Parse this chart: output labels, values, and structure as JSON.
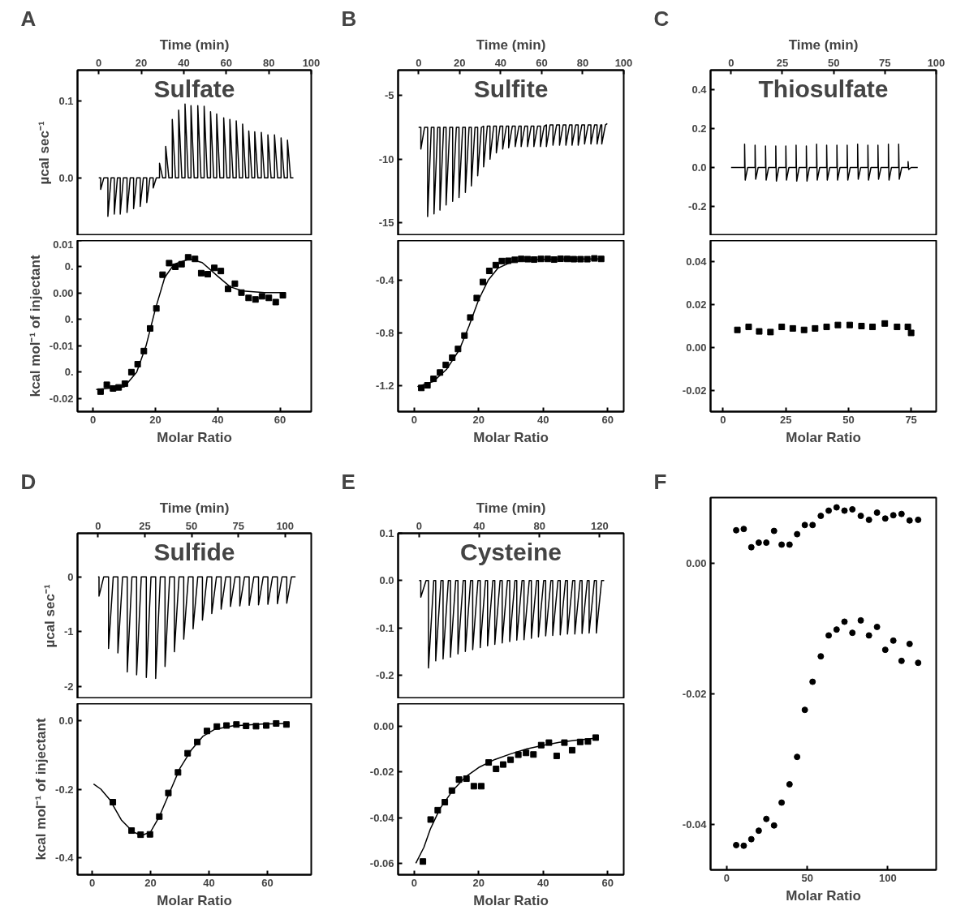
{
  "chart_data": [
    {
      "type": "line",
      "title": "A",
      "annotations": [
        "Sulfate"
      ],
      "xlabel": "Time (min)",
      "xlim": [
        -10,
        100
      ],
      "xticks": [
        0,
        20,
        40,
        60,
        80,
        100
      ],
      "ylabel": "µcal sec⁻¹",
      "ylim": [
        -0.075,
        0.14
      ],
      "yticks": [
        {
          "value": 0,
          "label": "0.0"
        },
        0.1
      ],
      "series": [
        {
          "color": "#000000",
          "x": [
            0,
            0.9,
            0.9,
            2.4,
            4.3,
            4.3,
            5.8,
            7.3,
            7.3,
            8.8,
            10.1,
            10.1,
            11.6,
            13.3,
            13.3,
            14.8,
            16.4,
            16.4,
            17.9,
            19.5,
            19.5,
            21.0,
            22.6,
            22.6,
            24.1,
            25.6,
            25.6,
            27.1,
            28.6,
            28.6,
            30.1,
            31.5,
            31.5,
            33.0,
            34.6,
            34.6,
            36.1,
            37.6,
            37.6,
            39.1,
            40.6,
            40.6,
            42.1,
            43.4,
            43.4,
            44.9,
            46.6,
            46.6,
            48.1,
            49.6,
            49.6,
            51.1,
            52.6,
            52.6,
            54.1,
            55.5,
            55.5,
            57.0,
            58.8,
            58.8,
            60.3,
            61.7,
            61.7,
            63.2,
            64.7,
            64.7,
            66.2,
            67.7,
            67.7,
            69.2,
            70.6,
            70.6,
            72.1,
            73.4,
            73.4,
            74.9,
            76.5,
            76.5,
            78.0,
            79.6,
            79.6,
            81.1,
            82.7,
            82.7,
            84.2,
            85.8,
            85.8,
            87.3,
            88.8,
            88.8,
            90.3,
            91.6
          ],
          "values": [
            0,
            0,
            -0.015,
            0,
            0,
            -0.05,
            0,
            0,
            -0.047,
            0,
            0,
            -0.047,
            0,
            0,
            -0.045,
            0,
            0,
            -0.04,
            0,
            0,
            -0.037,
            0,
            0,
            -0.032,
            0,
            0,
            -0.013,
            0,
            0,
            0.019,
            0,
            0,
            0.041,
            0,
            0,
            0.076,
            0,
            0,
            0.088,
            0,
            0,
            0.096,
            0,
            0,
            0.094,
            0,
            0,
            0.094,
            0,
            0,
            0.093,
            0,
            0,
            0.086,
            0,
            0,
            0.083,
            0,
            0,
            0.078,
            0,
            0,
            0.076,
            0,
            0,
            0.074,
            0,
            0,
            0.07,
            0,
            0,
            0.061,
            0,
            0,
            0.06,
            0,
            0,
            0.059,
            0,
            0,
            0.056,
            0,
            0,
            0.056,
            0,
            0,
            0.052,
            0,
            0,
            0.049,
            0,
            0
          ]
        }
      ]
    },
    {
      "type": "scatter",
      "xlabel": "Molar Ratio",
      "xlim": [
        -5,
        70
      ],
      "xticks": [
        0,
        20,
        40,
        60
      ],
      "ylabel": "kcal mol⁻¹ of injectant",
      "ylim": [
        -0.0225,
        0.01
      ],
      "yticks": [
        0.01,
        {
          "value": 0.005,
          "label": "0."
        },
        {
          "value": 0,
          "label": "0.00"
        },
        {
          "value": -0.005,
          "label": "0."
        },
        -0.01,
        {
          "value": -0.015,
          "label": "0."
        },
        -0.02
      ],
      "series": [
        {
          "type": "scatter",
          "marker": "square",
          "color": "#000000",
          "x": [
            2.4,
            4.4,
            6.4,
            8.2,
            10.2,
            12.3,
            14.3,
            16.3,
            18.3,
            20.3,
            22.3,
            24.4,
            26.4,
            28.4,
            30.5,
            32.7,
            34.7,
            36.8,
            38.9,
            41,
            43.3,
            45.5,
            47.6,
            49.9,
            52.1,
            54.2,
            56.4,
            58.6,
            60.9
          ],
          "values": [
            -0.0187,
            -0.0174,
            -0.0181,
            -0.0179,
            -0.0172,
            -0.015,
            -0.0135,
            -0.011,
            -0.0067,
            -0.0029,
            0.0035,
            0.0057,
            0.005,
            0.0055,
            0.0068,
            0.0065,
            0.0038,
            0.0036,
            0.0048,
            0.0042,
            0.0008,
            0.0018,
            0.0001,
            -0.0009,
            -0.0012,
            -0.0006,
            -0.0009,
            -0.0017,
            -0.0004
          ]
        },
        {
          "type": "line",
          "color": "#000000",
          "x": [
            1,
            10,
            14,
            17,
            20,
            23,
            26,
            31,
            35,
            40,
            44,
            48,
            55,
            61
          ],
          "values": [
            -0.0183,
            -0.0178,
            -0.015,
            -0.01,
            -0.003,
            0.003,
            0.0055,
            0.0065,
            0.0058,
            0.0032,
            0.0012,
            0.0004,
            0.0001,
            0.0001
          ]
        }
      ]
    },
    {
      "type": "line",
      "title": "B",
      "annotations": [
        "Sulfite"
      ],
      "xlabel": "Time (min)",
      "xlim": [
        -10,
        100
      ],
      "xticks": [
        0,
        20,
        40,
        60,
        80,
        100
      ],
      "ylim": [
        -16,
        -3
      ],
      "yticks": [
        -5,
        -10,
        -15
      ],
      "series": [
        {
          "color": "#000000",
          "x": [
            0,
            1.1,
            1.1,
            2.9,
            4.4,
            4.4,
            6.2,
            7.5,
            7.5,
            9.3,
            10.4,
            10.4,
            12.2,
            13.4,
            13.4,
            15.2,
            16.6,
            16.6,
            18.4,
            19.7,
            19.7,
            21.5,
            22.8,
            22.8,
            24.6,
            25.7,
            25.7,
            27.5,
            28.8,
            28.8,
            30.6,
            31.7,
            31.7,
            33.5,
            34.8,
            34.8,
            36.6,
            37.9,
            37.9,
            39.7,
            41.0,
            41.0,
            42.8,
            43.9,
            43.9,
            45.7,
            47.1,
            47.1,
            48.9,
            50.0,
            50.0,
            51.8,
            53.1,
            53.1,
            54.9,
            56.2,
            56.2,
            58.0,
            59.4,
            59.4,
            61.2,
            62.3,
            62.3,
            64.1,
            65.5,
            65.5,
            67.3,
            68.7,
            68.7,
            70.5,
            71.8,
            71.8,
            73.6,
            74.8,
            74.8,
            76.6,
            77.8,
            77.8,
            79.6,
            80.9,
            80.9,
            82.7,
            84.0,
            84.0,
            85.8,
            87.0,
            87.0,
            88.8,
            89.3,
            89.3,
            91.1,
            92
          ],
          "values": [
            -7.5,
            -7.5,
            -9.2,
            -7.5,
            -7.5,
            -14.5,
            -7.5,
            -7.5,
            -14.3,
            -7.5,
            -7.5,
            -14.0,
            -7.5,
            -7.5,
            -13.6,
            -7.5,
            -7.5,
            -13.3,
            -7.5,
            -7.5,
            -13.0,
            -7.5,
            -7.5,
            -12.6,
            -7.5,
            -7.5,
            -12.1,
            -7.5,
            -7.5,
            -11.3,
            -7.5,
            -7.4,
            -10.6,
            -7.4,
            -7.4,
            -10.0,
            -7.4,
            -7.4,
            -9.5,
            -7.4,
            -7.4,
            -9.2,
            -7.4,
            -7.4,
            -9.1,
            -7.4,
            -7.4,
            -9.0,
            -7.4,
            -7.4,
            -9.0,
            -7.4,
            -7.4,
            -9.0,
            -7.4,
            -7.4,
            -9.0,
            -7.4,
            -7.4,
            -9.0,
            -7.4,
            -7.3,
            -9.0,
            -7.3,
            -7.3,
            -8.9,
            -7.3,
            -7.3,
            -8.9,
            -7.3,
            -7.3,
            -8.9,
            -7.3,
            -7.3,
            -8.9,
            -7.3,
            -7.3,
            -8.9,
            -7.3,
            -7.3,
            -8.8,
            -7.3,
            -7.3,
            -8.8,
            -7.3,
            -7.3,
            -8.8,
            -7.3,
            -7.3,
            -8.8,
            -7.3,
            -7.2
          ]
        }
      ]
    },
    {
      "type": "scatter",
      "xlabel": "Molar Ratio",
      "xlim": [
        -5,
        65
      ],
      "xticks": [
        0,
        20,
        40,
        60
      ],
      "ylim": [
        -1.4,
        -0.1
      ],
      "yticks": [
        -0.4,
        -0.8,
        -1.2
      ],
      "series": [
        {
          "type": "scatter",
          "marker": "square",
          "color": "#000000",
          "x": [
            2.2,
            4.1,
            6.0,
            8.0,
            9.8,
            11.8,
            13.6,
            15.6,
            17.4,
            19.4,
            21.3,
            23.3,
            25.3,
            27.2,
            29.2,
            31.2,
            33.2,
            35.2,
            37.2,
            39.3,
            41.4,
            43.4,
            45.4,
            47.5,
            49.5,
            51.6,
            53.7,
            55.9,
            58.0
          ],
          "values": [
            -1.22,
            -1.2,
            -1.151,
            -1.103,
            -1.045,
            -0.99,
            -0.924,
            -0.822,
            -0.685,
            -0.537,
            -0.415,
            -0.331,
            -0.287,
            -0.256,
            -0.254,
            -0.247,
            -0.24,
            -0.242,
            -0.245,
            -0.24,
            -0.24,
            -0.245,
            -0.239,
            -0.24,
            -0.242,
            -0.242,
            -0.242,
            -0.236,
            -0.24
          ]
        },
        {
          "type": "line",
          "color": "#000000",
          "x": [
            1,
            6,
            10,
            14,
            17,
            20,
            23,
            26,
            30,
            35,
            45,
            58
          ],
          "values": [
            -1.21,
            -1.17,
            -1.08,
            -0.93,
            -0.75,
            -0.55,
            -0.4,
            -0.31,
            -0.265,
            -0.247,
            -0.242,
            -0.24
          ]
        }
      ]
    },
    {
      "type": "line",
      "title": "C",
      "annotations": [
        "Thiosulfate"
      ],
      "xlabel": "Time (min)",
      "xlim": [
        -10,
        100
      ],
      "xticks": [
        0,
        25,
        50,
        75,
        100
      ],
      "ylim": [
        -0.35,
        0.5
      ],
      "yticks": [
        0.4,
        0.2,
        {
          "value": 0,
          "label": "0.0"
        },
        -0.2
      ],
      "series": [
        {
          "color": "#000000",
          "x": [
            0,
            6.6,
            6.6,
            6.9,
            8.1,
            11.7,
            11.7,
            12.0,
            13.2,
            16.8,
            16.8,
            17.1,
            18.3,
            21.8,
            21.8,
            22.1,
            23.3,
            26.7,
            26.7,
            27.0,
            28.2,
            31.7,
            31.7,
            32.0,
            33.2,
            36.7,
            36.7,
            37.0,
            38.2,
            41.7,
            41.7,
            42.0,
            43.2,
            46.6,
            46.6,
            46.9,
            48.1,
            51.6,
            51.6,
            51.9,
            53.1,
            56.6,
            56.6,
            56.9,
            58.1,
            61.7,
            61.7,
            62.0,
            63.2,
            66.7,
            66.7,
            67.0,
            68.2,
            71.6,
            71.6,
            71.9,
            73.1,
            76.7,
            76.7,
            77.0,
            78.2,
            81.7,
            81.7,
            82.0,
            83.2,
            86.3,
            86.3,
            86.6,
            87.8,
            91
          ],
          "values": [
            0,
            0,
            0.12,
            -0.065,
            0,
            0,
            0.115,
            -0.06,
            0,
            0,
            0.11,
            -0.065,
            0,
            0,
            0.11,
            -0.07,
            0,
            0,
            0.11,
            -0.065,
            0,
            0,
            0.115,
            -0.07,
            0,
            0,
            0.11,
            -0.07,
            0,
            0,
            0.12,
            -0.065,
            0,
            0,
            0.115,
            -0.065,
            0,
            0,
            0.115,
            -0.065,
            0,
            0,
            0.115,
            -0.065,
            0,
            0,
            0.12,
            -0.06,
            0,
            0,
            0.115,
            -0.065,
            0,
            0,
            0.115,
            -0.06,
            0,
            0,
            0.12,
            -0.065,
            0,
            0,
            0.12,
            -0.06,
            0,
            0,
            0.03,
            -0.01,
            0,
            0
          ]
        }
      ]
    },
    {
      "type": "scatter",
      "marker": "square",
      "xlabel": "Molar Ratio",
      "xlim": [
        -5,
        85
      ],
      "xticks": [
        0,
        25,
        50,
        75
      ],
      "ylim": [
        -0.03,
        0.05
      ],
      "yticks": [
        0.04,
        0.02,
        {
          "value": 0,
          "label": "0.00"
        },
        -0.02
      ],
      "series": [
        {
          "type": "scatter",
          "color": "#000000",
          "x": [
            5.7,
            10.2,
            14.4,
            18.9,
            23.4,
            27.8,
            32.3,
            36.7,
            41.3,
            45.8,
            50.5,
            55.2,
            59.6,
            64.5,
            69.4,
            73.7,
            75
          ],
          "values": [
            0.0082,
            0.0096,
            0.0075,
            0.0072,
            0.0096,
            0.0089,
            0.0082,
            0.0089,
            0.0096,
            0.0105,
            0.0105,
            0.01,
            0.0096,
            0.0112,
            0.0096,
            0.0096,
            0.0068
          ]
        }
      ]
    },
    {
      "type": "line",
      "title": "D",
      "annotations": [
        "Sulfide"
      ],
      "xlabel": "Time (min)",
      "xlim": [
        -11,
        114
      ],
      "xticks": [
        0,
        25,
        50,
        75,
        100
      ],
      "ylabel": "µcal sec⁻¹",
      "ylim": [
        -2.23,
        0.8
      ],
      "yticks": [
        0,
        -1,
        -2
      ],
      "series": [
        {
          "color": "#000000",
          "x": [
            0,
            0.5,
            0.5,
            3.0,
            5.6,
            5.6,
            8.1,
            10.6,
            10.6,
            13.1,
            15.6,
            15.6,
            18.1,
            20.6,
            20.6,
            23.1,
            25.8,
            25.8,
            28.3,
            30.8,
            30.8,
            33.3,
            35.8,
            35.8,
            38.3,
            40.8,
            40.8,
            43.3,
            45.8,
            45.8,
            48.3,
            50.8,
            50.8,
            53.3,
            55.8,
            55.8,
            58.3,
            60.8,
            60.8,
            63.3,
            65.8,
            65.8,
            68.3,
            70.8,
            70.8,
            73.3,
            75.8,
            75.8,
            78.3,
            80.8,
            80.8,
            83.3,
            85.8,
            85.8,
            88.3,
            90.8,
            90.8,
            93.3,
            95.9,
            95.9,
            98.4,
            100.9,
            100.9,
            103.4,
            105.6
          ],
          "values": [
            0,
            0,
            -0.35,
            0,
            0,
            -1.31,
            0,
            0,
            -1.39,
            0,
            0,
            -1.74,
            0,
            0,
            -1.79,
            0,
            0,
            -1.84,
            0,
            0,
            -1.86,
            0,
            0,
            -1.64,
            0,
            0,
            -1.37,
            0,
            0,
            -1.14,
            0,
            0,
            -0.95,
            0,
            0,
            -0.79,
            0,
            0,
            -0.67,
            0,
            0,
            -0.59,
            0,
            0,
            -0.54,
            0,
            0,
            -0.53,
            0,
            0,
            -0.52,
            0,
            0,
            -0.51,
            0,
            0,
            -0.5,
            0,
            0,
            -0.49,
            0,
            0,
            -0.48,
            0,
            0
          ]
        }
      ]
    },
    {
      "type": "scatter",
      "xlabel": "Molar Ratio",
      "xlim": [
        -5,
        75
      ],
      "xticks": [
        0,
        20,
        40,
        60
      ],
      "ylabel": "kcal mol⁻¹ of injectant",
      "ylim": [
        -0.45,
        0.05
      ],
      "yticks": [
        {
          "value": 0,
          "label": "0.0"
        },
        -0.2,
        -0.4
      ],
      "series": [
        {
          "type": "scatter",
          "marker": "square",
          "color": "#000000",
          "x": [
            7.1,
            13.5,
            16.6,
            19.8,
            23,
            26.1,
            29.4,
            32.7,
            36,
            39.3,
            42.7,
            46,
            49.4,
            52.7,
            56.1,
            59.6,
            63,
            66.5
          ],
          "values": [
            -0.238,
            -0.321,
            -0.333,
            -0.332,
            -0.28,
            -0.211,
            -0.151,
            -0.095,
            -0.062,
            -0.03,
            -0.017,
            -0.014,
            -0.011,
            -0.015,
            -0.016,
            -0.014,
            -0.008,
            -0.011
          ]
        },
        {
          "type": "line",
          "color": "#000000",
          "x": [
            0.5,
            3,
            6,
            10,
            14,
            17,
            20,
            23,
            27,
            30,
            34,
            38,
            42,
            48,
            58,
            67
          ],
          "values": [
            -0.185,
            -0.2,
            -0.23,
            -0.29,
            -0.325,
            -0.335,
            -0.325,
            -0.28,
            -0.2,
            -0.14,
            -0.085,
            -0.045,
            -0.025,
            -0.015,
            -0.01,
            -0.008
          ]
        }
      ]
    },
    {
      "type": "line",
      "title": "E",
      "annotations": [
        "Cysteine"
      ],
      "xlabel": "Time (min)",
      "xlim": [
        -14,
        136
      ],
      "xticks": [
        0,
        40,
        80,
        120
      ],
      "ylim": [
        -0.25,
        0.1
      ],
      "yticks": [
        0.1,
        {
          "value": 0,
          "label": "0.0"
        },
        -0.1,
        -0.2
      ],
      "series": [
        {
          "color": "#000000",
          "x": [
            0,
            1.1,
            1.1,
            4.6,
            6.2,
            6.2,
            9.7,
            11.0,
            11.0,
            14.5,
            15.9,
            15.9,
            19.4,
            20.8,
            20.8,
            24.3,
            25.8,
            25.8,
            29.3,
            30.7,
            30.7,
            34.2,
            35.6,
            35.6,
            39.1,
            40.6,
            40.6,
            44.1,
            45.5,
            45.5,
            49.0,
            50.3,
            50.3,
            53.8,
            55.2,
            55.2,
            58.7,
            60.2,
            60.2,
            63.7,
            64.9,
            64.9,
            68.4,
            69.7,
            69.7,
            73.2,
            74.6,
            74.6,
            78.1,
            79.3,
            79.3,
            82.8,
            84.1,
            84.1,
            87.6,
            88.8,
            88.8,
            92.3,
            93.8,
            93.8,
            97.3,
            98.6,
            98.6,
            102.1,
            103.5,
            103.5,
            107.0,
            108.3,
            108.3,
            111.8,
            113.0,
            113.0,
            116.5,
            117.8,
            117.8,
            121.3,
            123
          ],
          "values": [
            0,
            0,
            -0.035,
            0,
            0,
            -0.185,
            0,
            0,
            -0.17,
            0,
            0,
            -0.166,
            0,
            0,
            -0.162,
            0,
            0,
            -0.155,
            0,
            0,
            -0.15,
            0,
            0,
            -0.146,
            0,
            0,
            -0.142,
            0,
            0,
            -0.138,
            0,
            0,
            -0.135,
            0,
            0,
            -0.132,
            0,
            0,
            -0.129,
            0,
            0,
            -0.126,
            0,
            0,
            -0.125,
            0,
            0,
            -0.122,
            0,
            0,
            -0.119,
            0,
            0,
            -0.117,
            0,
            0,
            -0.116,
            0,
            0,
            -0.115,
            0,
            0,
            -0.113,
            0,
            0,
            -0.113,
            0,
            0,
            -0.112,
            0,
            0,
            -0.111,
            0,
            0,
            -0.111,
            0,
            0
          ]
        }
      ]
    },
    {
      "type": "scatter",
      "xlabel": "Molar Ratio",
      "xlim": [
        -5,
        65
      ],
      "xticks": [
        0,
        20,
        40,
        60
      ],
      "ylim": [
        -0.065,
        0.01
      ],
      "yticks": [
        {
          "value": 0,
          "label": "0.00"
        },
        -0.02,
        -0.04,
        -0.06
      ],
      "series": [
        {
          "type": "scatter",
          "marker": "square",
          "color": "#000000",
          "x": [
            2.7,
            5.1,
            7.3,
            9.5,
            11.7,
            13.9,
            16.2,
            18.5,
            20.8,
            23.1,
            25.4,
            27.6,
            29.9,
            32.3,
            34.7,
            37,
            39.4,
            41.8,
            44.2,
            46.6,
            49,
            51.5,
            53.9,
            56.3
          ],
          "values": [
            -0.0592,
            -0.0408,
            -0.0367,
            -0.0332,
            -0.0281,
            -0.0233,
            -0.0229,
            -0.0262,
            -0.0262,
            -0.0158,
            -0.0186,
            -0.0167,
            -0.0146,
            -0.0124,
            -0.0116,
            -0.0123,
            -0.0082,
            -0.0071,
            -0.0129,
            -0.0071,
            -0.0104,
            -0.0068,
            -0.0066,
            -0.0049
          ]
        },
        {
          "type": "line",
          "color": "#000000",
          "x": [
            0.5,
            3,
            5,
            8,
            12,
            16,
            20,
            25,
            30,
            35,
            40,
            45,
            50,
            56
          ],
          "values": [
            -0.06,
            -0.053,
            -0.045,
            -0.036,
            -0.028,
            -0.022,
            -0.018,
            -0.0145,
            -0.012,
            -0.0098,
            -0.0083,
            -0.007,
            -0.0061,
            -0.0052
          ]
        }
      ]
    },
    {
      "type": "scatter",
      "title": "F",
      "marker": "circle",
      "xlabel": "Molar Ratio",
      "xlim": [
        -10,
        130
      ],
      "xticks": [
        0,
        50,
        100
      ],
      "ylim": [
        -0.047,
        0.01
      ],
      "yticks": [
        {
          "value": 0,
          "label": "0.00"
        },
        -0.02,
        -0.04
      ],
      "series": [
        {
          "color": "#000000",
          "x": [
            5.9,
            10.6,
            15.3,
            19.9,
            24.6,
            29.4,
            34.1,
            39.0,
            43.7,
            48.5,
            53.3,
            58.4,
            63.3,
            68.2,
            73.1,
            78.0,
            83.2,
            88.3,
            93.3,
            98.4,
            103.4,
            108.5,
            113.5,
            118.8
          ],
          "values": [
            0.005,
            0.0052,
            0.0024,
            0.0031,
            0.0031,
            0.0049,
            0.0028,
            0.0028,
            0.0044,
            0.0058,
            0.0058,
            0.0072,
            0.008,
            0.0085,
            0.008,
            0.0082,
            0.0072,
            0.0066,
            0.0077,
            0.0068,
            0.0073,
            0.0075,
            0.0065,
            0.0066
          ]
        },
        {
          "color": "#000000",
          "x": [
            5.9,
            10.6,
            15.3,
            19.9,
            24.6,
            29.4,
            34.1,
            39.0,
            43.7,
            48.5,
            53.3,
            58.4,
            63.3,
            68.2,
            73.1,
            78.0,
            83.2,
            88.3,
            93.3,
            98.4,
            103.4,
            108.5,
            113.5,
            118.8
          ],
          "values": [
            -0.0432,
            -0.0433,
            -0.0423,
            -0.041,
            -0.0392,
            -0.0402,
            -0.0367,
            -0.0339,
            -0.0297,
            -0.0225,
            -0.0182,
            -0.0143,
            -0.0111,
            -0.0102,
            -0.009,
            -0.0107,
            -0.0088,
            -0.0111,
            -0.0098,
            -0.0133,
            -0.0119,
            -0.015,
            -0.0124,
            -0.0153
          ]
        }
      ]
    }
  ]
}
